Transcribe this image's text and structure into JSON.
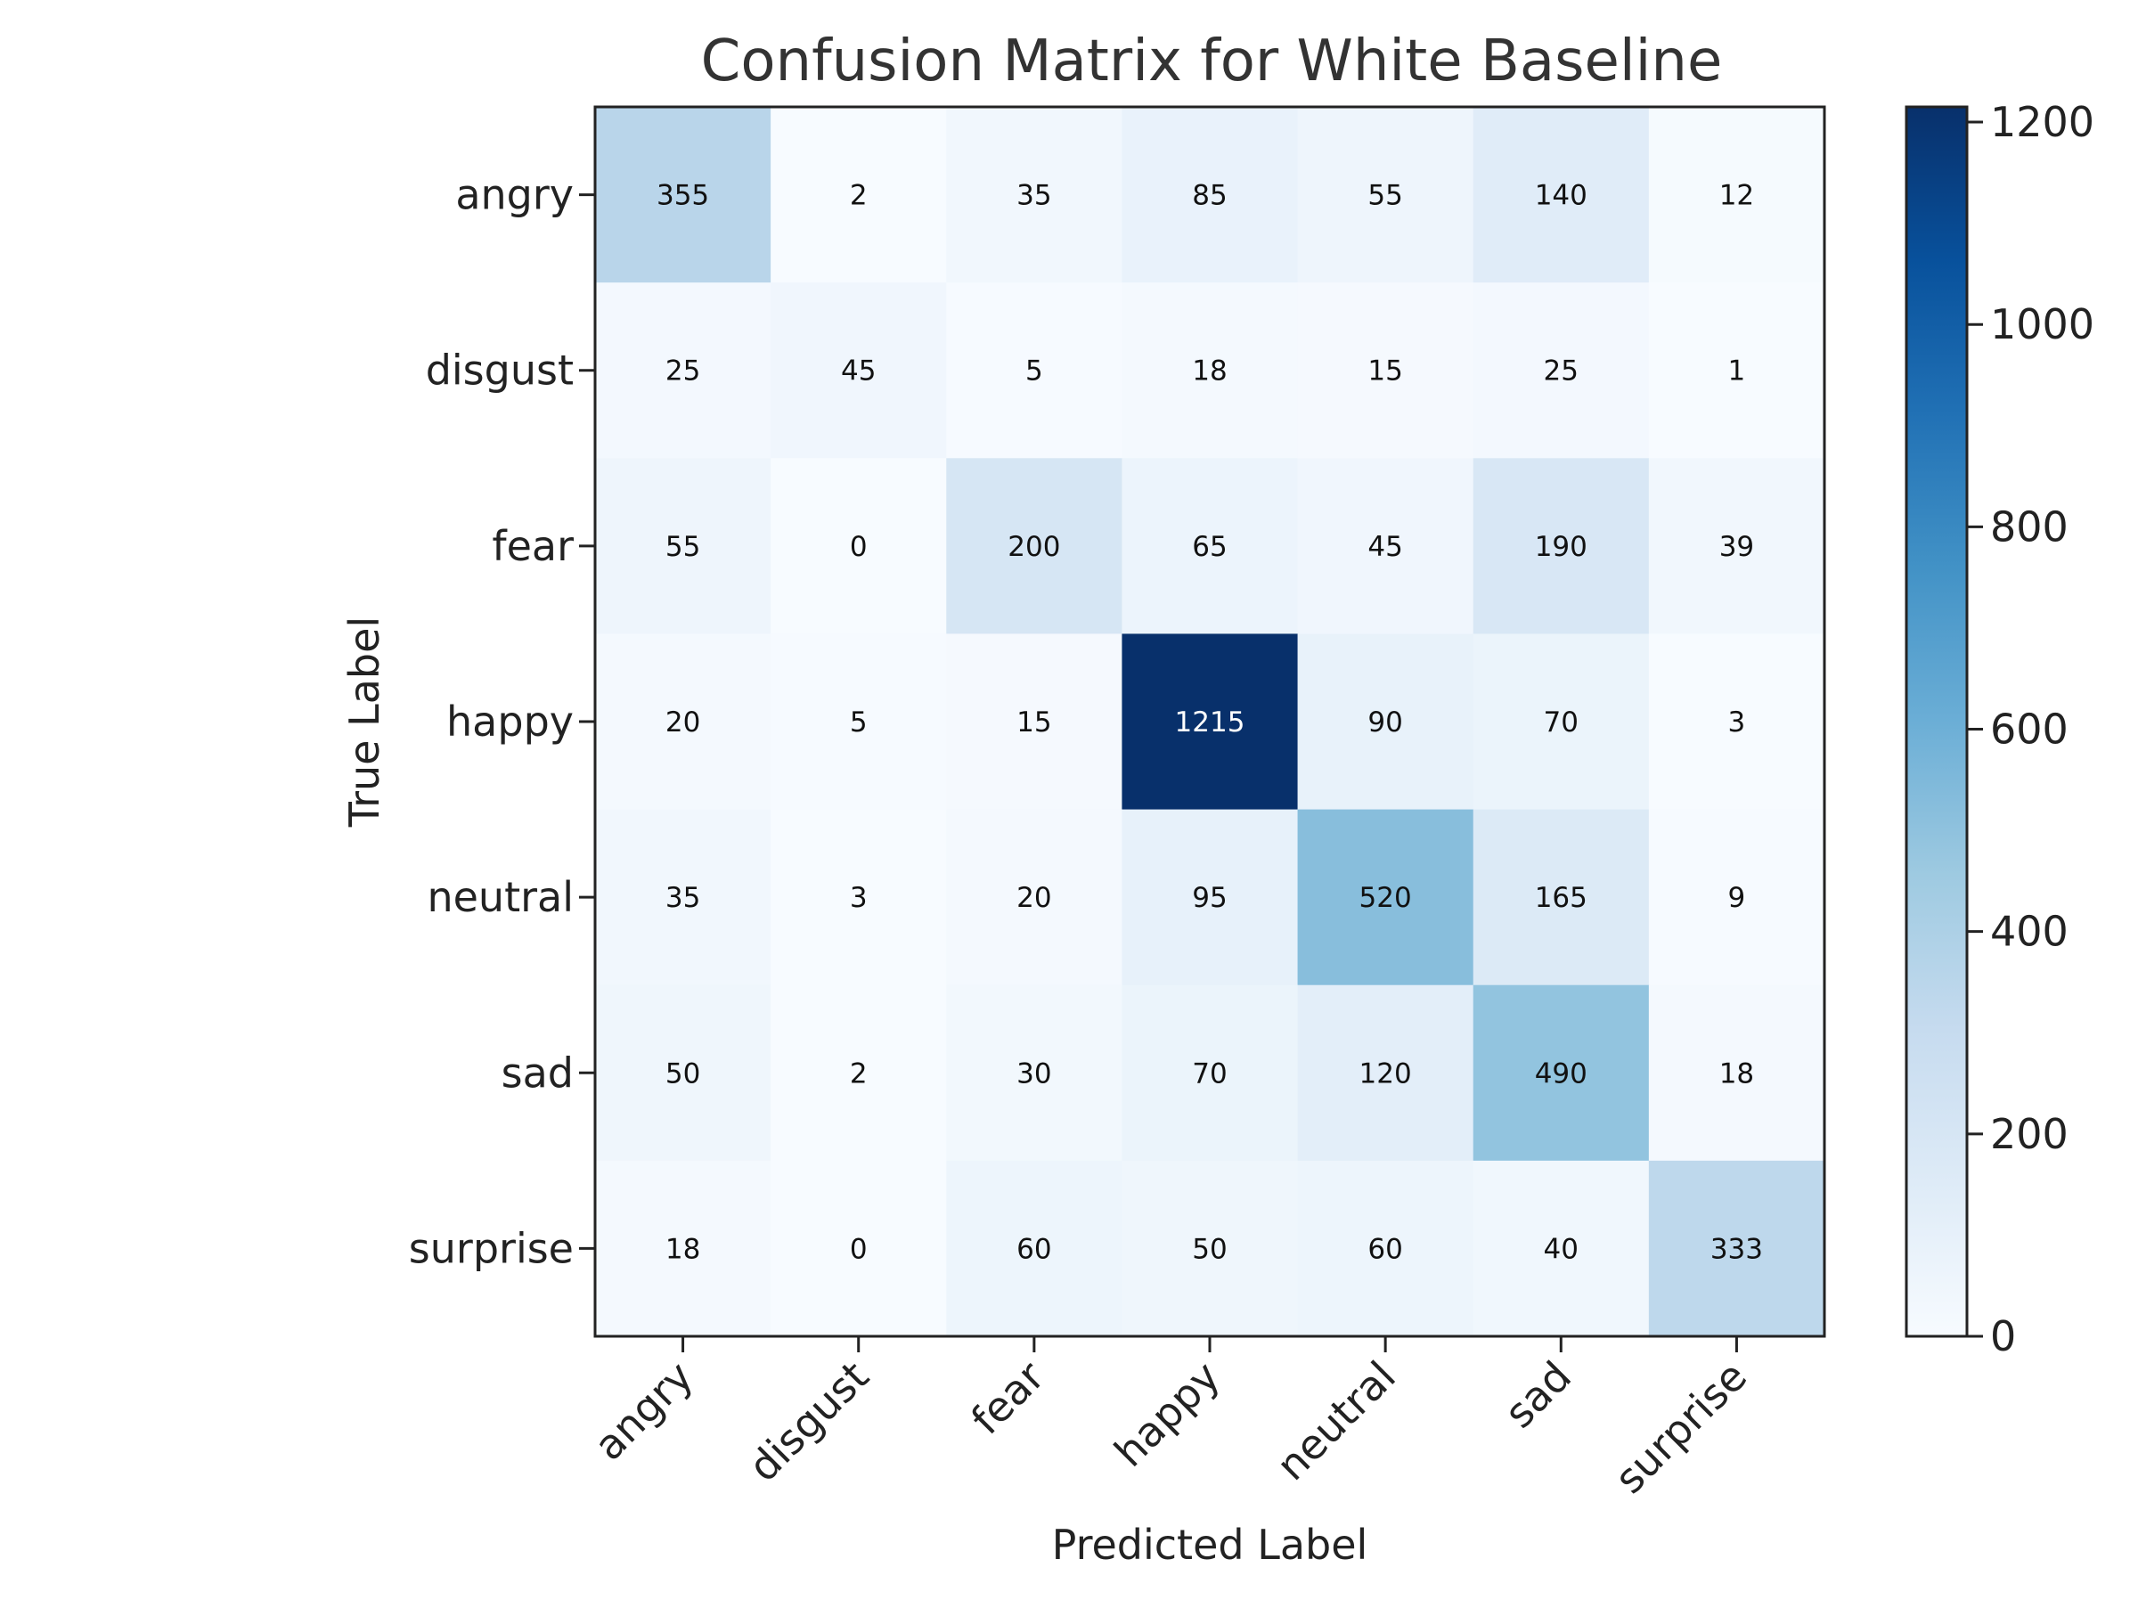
{
  "chart_data": {
    "type": "heatmap",
    "title": "Confusion Matrix for White Baseline",
    "xlabel": "Predicted Label",
    "ylabel": "True Label",
    "x_categories": [
      "angry",
      "disgust",
      "fear",
      "happy",
      "neutral",
      "sad",
      "surprise"
    ],
    "y_categories": [
      "angry",
      "disgust",
      "fear",
      "happy",
      "neutral",
      "sad",
      "surprise"
    ],
    "values": [
      [
        355,
        2,
        35,
        85,
        55,
        140,
        12
      ],
      [
        25,
        45,
        5,
        18,
        15,
        25,
        1
      ],
      [
        55,
        0,
        200,
        65,
        45,
        190,
        39
      ],
      [
        20,
        5,
        15,
        1215,
        90,
        70,
        3
      ],
      [
        35,
        3,
        20,
        95,
        520,
        165,
        9
      ],
      [
        50,
        2,
        30,
        70,
        120,
        490,
        18
      ],
      [
        18,
        0,
        60,
        50,
        60,
        40,
        333
      ]
    ],
    "colorbar": {
      "min": 0,
      "max": 1215,
      "ticks": [
        0,
        200,
        400,
        600,
        800,
        1000,
        1200
      ],
      "tick_labels": [
        "0",
        "200",
        "400",
        "600",
        "800",
        "1000",
        "1200"
      ],
      "colormap": [
        "#f7fbff",
        "#deebf7",
        "#c6dbef",
        "#9ecae1",
        "#6baed6",
        "#4292c6",
        "#2171b5",
        "#08519c",
        "#08306b"
      ]
    },
    "grid": false,
    "legend": "colorbar-right"
  }
}
